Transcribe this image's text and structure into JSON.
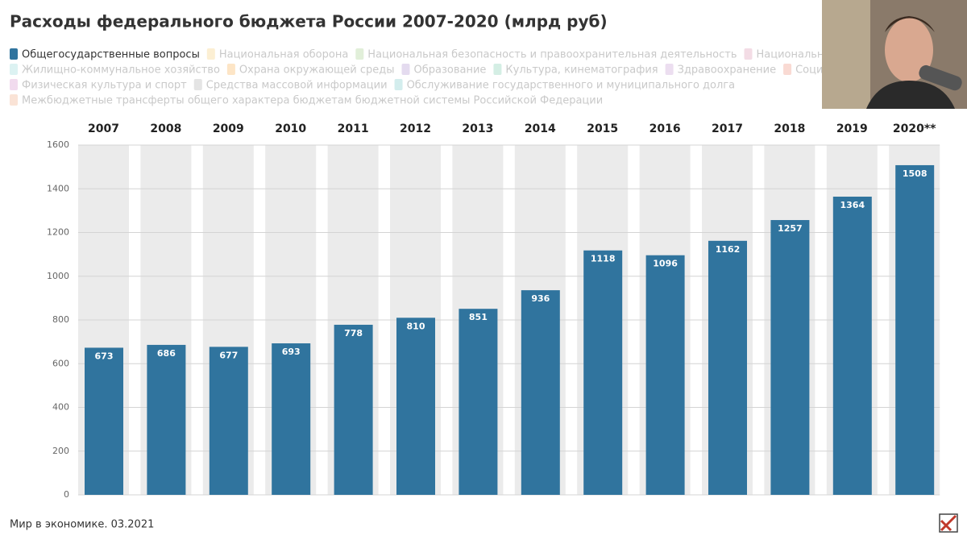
{
  "chart_data": {
    "type": "bar",
    "title": "Расходы федерального бюджета России 2007-2020 (млрд руб)",
    "categories": [
      "2007",
      "2008",
      "2009",
      "2010",
      "2011",
      "2012",
      "2013",
      "2014",
      "2015",
      "2016",
      "2017",
      "2018",
      "2019",
      "2020**"
    ],
    "series": [
      {
        "name": "Общегосударственные вопросы",
        "color": "#30749e",
        "values": [
          673,
          686,
          677,
          693,
          778,
          810,
          851,
          936,
          1118,
          1096,
          1162,
          1257,
          1364,
          1508
        ]
      }
    ],
    "legend_inactive": [
      {
        "name": "Национальная оборона",
        "color": "#fcefd3"
      },
      {
        "name": "Национальная безопасность и правоохранительная деятельность",
        "color": "#e1efd9"
      },
      {
        "name": "Национальная экономика",
        "color": "#f3dce5"
      },
      {
        "name": "Жилищно-коммунальное хозяйство",
        "color": "#dcf2f2"
      },
      {
        "name": "Охрана окружающей среды",
        "color": "#fde5c6"
      },
      {
        "name": "Образование",
        "color": "#e4dbef"
      },
      {
        "name": "Культура, кинематография",
        "color": "#d4eee4"
      },
      {
        "name": "Здравоохранение",
        "color": "#ecdef0"
      },
      {
        "name": "Социальная политика",
        "color": "#f9dad3"
      },
      {
        "name": "Физическая культура и спорт",
        "color": "#f1dbee"
      },
      {
        "name": "Средства массовой информации",
        "color": "#e4e4e4"
      },
      {
        "name": "Обслуживание государственного и муниципального долга",
        "color": "#d3eded"
      },
      {
        "name": "Межбюджетные трансферты общего характера бюджетам бюджетной системы Российской Федерации",
        "color": "#fae3d6"
      }
    ],
    "ylim": [
      0,
      1600
    ],
    "yticks": [
      0,
      200,
      400,
      600,
      800,
      1000,
      1200,
      1400,
      1600
    ],
    "grid": true,
    "source": "Мир в экономике. 03.2021"
  }
}
